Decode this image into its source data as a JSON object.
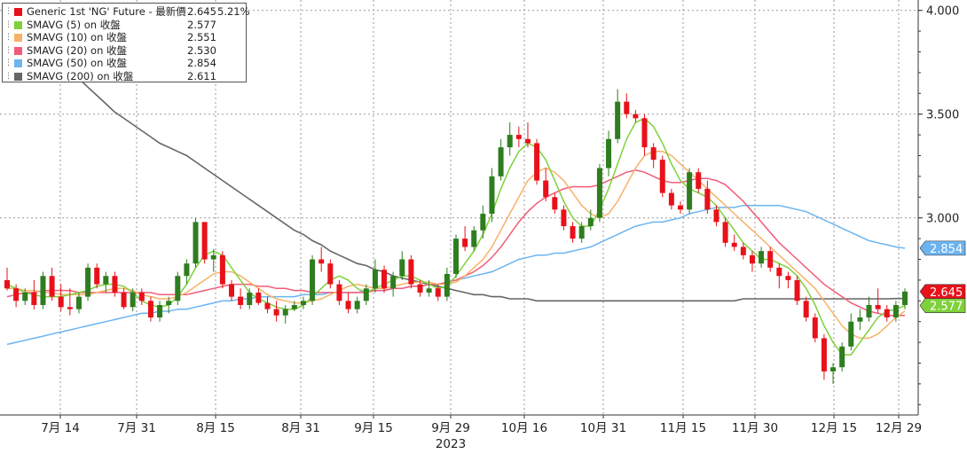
{
  "legend": [
    {
      "label": "Generic 1st 'NG' Future - 最新價",
      "value": "2.645",
      "change": "5.21%",
      "color": "#e8111a"
    },
    {
      "label": "SMAVG (5)  on 收盤",
      "value": "2.577",
      "change": "",
      "color": "#7fd13b"
    },
    {
      "label": "SMAVG (10)  on 收盤",
      "value": "2.551",
      "change": "",
      "color": "#f7b267"
    },
    {
      "label": "SMAVG (20)  on 收盤",
      "value": "2.530",
      "change": "",
      "color": "#f25c78"
    },
    {
      "label": "SMAVG (50)  on 收盤",
      "value": "2.854",
      "change": "",
      "color": "#6cb4f0"
    },
    {
      "label": "SMAVG (200)  on 收盤",
      "value": "2.611",
      "change": "",
      "color": "#666666"
    }
  ],
  "chart_data": {
    "type": "candlestick",
    "y_ticks": [
      "4.000",
      "3.500",
      "3.000"
    ],
    "y_tick_values": [
      4.0,
      3.5,
      3.0
    ],
    "ylim": [
      2.05,
      4.05
    ],
    "x_tick_labels": [
      "7月 14",
      "7月 31",
      "8月 15",
      "8月 31",
      "9月 15",
      "9月 29",
      "10月 16",
      "10月 31",
      "11月 15",
      "11月 30",
      "12月 15",
      "12月 29"
    ],
    "x_sublabel": "2023",
    "grid": true,
    "up_color": "#2e7d1f",
    "down_color": "#e8111a",
    "value_tags": [
      {
        "text": "2.854",
        "value": 2.854,
        "color": "#6cb4f0"
      },
      {
        "text": "2.645",
        "value": 2.645,
        "color": "#e8111a"
      },
      {
        "text": "2.577",
        "value": 2.577,
        "color": "#7fd13b"
      }
    ],
    "candles": [
      [
        2.7,
        2.76,
        2.65,
        2.66
      ],
      [
        2.66,
        2.68,
        2.57,
        2.6
      ],
      [
        2.6,
        2.66,
        2.58,
        2.64
      ],
      [
        2.64,
        2.7,
        2.56,
        2.58
      ],
      [
        2.58,
        2.74,
        2.56,
        2.72
      ],
      [
        2.72,
        2.76,
        2.6,
        2.62
      ],
      [
        2.62,
        2.68,
        2.55,
        2.57
      ],
      [
        2.57,
        2.66,
        2.53,
        2.56
      ],
      [
        2.56,
        2.64,
        2.54,
        2.62
      ],
      [
        2.62,
        2.78,
        2.6,
        2.76
      ],
      [
        2.76,
        2.78,
        2.66,
        2.68
      ],
      [
        2.68,
        2.74,
        2.64,
        2.72
      ],
      [
        2.72,
        2.74,
        2.62,
        2.64
      ],
      [
        2.64,
        2.66,
        2.56,
        2.57
      ],
      [
        2.57,
        2.66,
        2.55,
        2.64
      ],
      [
        2.64,
        2.66,
        2.58,
        2.6
      ],
      [
        2.6,
        2.62,
        2.5,
        2.52
      ],
      [
        2.52,
        2.6,
        2.5,
        2.58
      ],
      [
        2.58,
        2.62,
        2.54,
        2.6
      ],
      [
        2.6,
        2.74,
        2.58,
        2.72
      ],
      [
        2.72,
        2.8,
        2.68,
        2.78
      ],
      [
        2.78,
        3.0,
        2.76,
        2.98
      ],
      [
        2.98,
        2.98,
        2.78,
        2.8
      ],
      [
        2.8,
        2.85,
        2.74,
        2.82
      ],
      [
        2.82,
        2.84,
        2.66,
        2.68
      ],
      [
        2.68,
        2.7,
        2.6,
        2.62
      ],
      [
        2.62,
        2.66,
        2.56,
        2.58
      ],
      [
        2.58,
        2.66,
        2.56,
        2.64
      ],
      [
        2.64,
        2.66,
        2.58,
        2.59
      ],
      [
        2.59,
        2.62,
        2.54,
        2.56
      ],
      [
        2.56,
        2.6,
        2.5,
        2.53
      ],
      [
        2.53,
        2.58,
        2.49,
        2.56
      ],
      [
        2.56,
        2.6,
        2.55,
        2.58
      ],
      [
        2.58,
        2.62,
        2.56,
        2.6
      ],
      [
        2.6,
        2.82,
        2.58,
        2.8
      ],
      [
        2.8,
        2.86,
        2.74,
        2.78
      ],
      [
        2.78,
        2.8,
        2.66,
        2.68
      ],
      [
        2.68,
        2.7,
        2.58,
        2.6
      ],
      [
        2.6,
        2.64,
        2.54,
        2.56
      ],
      [
        2.56,
        2.62,
        2.54,
        2.6
      ],
      [
        2.6,
        2.68,
        2.58,
        2.66
      ],
      [
        2.66,
        2.8,
        2.64,
        2.75
      ],
      [
        2.75,
        2.77,
        2.64,
        2.66
      ],
      [
        2.66,
        2.74,
        2.62,
        2.72
      ],
      [
        2.72,
        2.84,
        2.7,
        2.8
      ],
      [
        2.8,
        2.82,
        2.66,
        2.68
      ],
      [
        2.68,
        2.7,
        2.62,
        2.64
      ],
      [
        2.64,
        2.7,
        2.62,
        2.66
      ],
      [
        2.66,
        2.68,
        2.6,
        2.62
      ],
      [
        2.62,
        2.76,
        2.6,
        2.73
      ],
      [
        2.73,
        2.92,
        2.71,
        2.9
      ],
      [
        2.9,
        2.96,
        2.84,
        2.86
      ],
      [
        2.86,
        2.96,
        2.84,
        2.94
      ],
      [
        2.94,
        3.06,
        2.9,
        3.02
      ],
      [
        3.02,
        3.24,
        2.98,
        3.2
      ],
      [
        3.2,
        3.38,
        3.18,
        3.34
      ],
      [
        3.34,
        3.46,
        3.3,
        3.4
      ],
      [
        3.4,
        3.44,
        3.34,
        3.38
      ],
      [
        3.38,
        3.46,
        3.34,
        3.36
      ],
      [
        3.36,
        3.38,
        3.16,
        3.18
      ],
      [
        3.18,
        3.24,
        3.08,
        3.1
      ],
      [
        3.1,
        3.12,
        3.02,
        3.04
      ],
      [
        3.04,
        3.06,
        2.94,
        2.96
      ],
      [
        2.96,
        2.98,
        2.88,
        2.9
      ],
      [
        2.9,
        2.98,
        2.88,
        2.96
      ],
      [
        2.96,
        3.04,
        2.94,
        3.0
      ],
      [
        3.0,
        3.26,
        2.98,
        3.24
      ],
      [
        3.24,
        3.42,
        3.2,
        3.38
      ],
      [
        3.38,
        3.62,
        3.36,
        3.56
      ],
      [
        3.56,
        3.6,
        3.48,
        3.5
      ],
      [
        3.5,
        3.52,
        3.46,
        3.48
      ],
      [
        3.48,
        3.5,
        3.3,
        3.34
      ],
      [
        3.34,
        3.36,
        3.24,
        3.28
      ],
      [
        3.28,
        3.3,
        3.1,
        3.12
      ],
      [
        3.12,
        3.14,
        3.04,
        3.06
      ],
      [
        3.06,
        3.08,
        3.02,
        3.04
      ],
      [
        3.04,
        3.24,
        3.02,
        3.22
      ],
      [
        3.22,
        3.24,
        3.12,
        3.14
      ],
      [
        3.14,
        3.18,
        3.02,
        3.04
      ],
      [
        3.04,
        3.06,
        2.96,
        2.98
      ],
      [
        2.98,
        3.0,
        2.86,
        2.88
      ],
      [
        2.88,
        2.92,
        2.84,
        2.86
      ],
      [
        2.86,
        2.88,
        2.8,
        2.82
      ],
      [
        2.82,
        2.84,
        2.74,
        2.78
      ],
      [
        2.78,
        2.86,
        2.76,
        2.84
      ],
      [
        2.84,
        2.86,
        2.74,
        2.76
      ],
      [
        2.76,
        2.78,
        2.66,
        2.72
      ],
      [
        2.72,
        2.74,
        2.66,
        2.7
      ],
      [
        2.7,
        2.72,
        2.58,
        2.6
      ],
      [
        2.6,
        2.62,
        2.5,
        2.52
      ],
      [
        2.52,
        2.54,
        2.4,
        2.42
      ],
      [
        2.42,
        2.44,
        2.22,
        2.26
      ],
      [
        2.26,
        2.3,
        2.2,
        2.28
      ],
      [
        2.28,
        2.4,
        2.26,
        2.38
      ],
      [
        2.38,
        2.54,
        2.36,
        2.5
      ],
      [
        2.5,
        2.56,
        2.46,
        2.52
      ],
      [
        2.52,
        2.62,
        2.5,
        2.58
      ],
      [
        2.58,
        2.66,
        2.54,
        2.56
      ],
      [
        2.56,
        2.58,
        2.5,
        2.52
      ],
      [
        2.52,
        2.6,
        2.5,
        2.58
      ],
      [
        2.58,
        2.66,
        2.56,
        2.645
      ]
    ],
    "sma5": [
      2.68,
      2.66,
      2.64,
      2.63,
      2.62,
      2.62,
      2.62,
      2.63,
      2.64,
      2.65,
      2.67,
      2.68,
      2.68,
      2.67,
      2.64,
      2.6,
      2.58,
      2.57,
      2.58,
      2.62,
      2.68,
      2.76,
      2.82,
      2.84,
      2.82,
      2.76,
      2.7,
      2.64,
      2.61,
      2.59,
      2.57,
      2.56,
      2.56,
      2.58,
      2.62,
      2.66,
      2.7,
      2.72,
      2.7,
      2.66,
      2.64,
      2.66,
      2.68,
      2.7,
      2.72,
      2.72,
      2.7,
      2.68,
      2.66,
      2.67,
      2.72,
      2.78,
      2.84,
      2.92,
      3.02,
      3.14,
      3.24,
      3.32,
      3.36,
      3.34,
      3.28,
      3.18,
      3.08,
      3.0,
      2.96,
      2.96,
      3.04,
      3.14,
      3.26,
      3.38,
      3.46,
      3.48,
      3.44,
      3.36,
      3.26,
      3.18,
      3.14,
      3.12,
      3.1,
      3.06,
      3.0,
      2.94,
      2.88,
      2.84,
      2.8,
      2.8,
      2.78,
      2.76,
      2.72,
      2.66,
      2.58,
      2.48,
      2.4,
      2.34,
      2.34,
      2.4,
      2.46,
      2.52,
      2.55,
      2.56,
      2.577
    ],
    "sma10": [
      2.66,
      2.66,
      2.65,
      2.65,
      2.64,
      2.64,
      2.63,
      2.63,
      2.63,
      2.63,
      2.64,
      2.65,
      2.66,
      2.66,
      2.65,
      2.63,
      2.62,
      2.61,
      2.61,
      2.62,
      2.64,
      2.67,
      2.7,
      2.73,
      2.74,
      2.74,
      2.72,
      2.69,
      2.66,
      2.63,
      2.61,
      2.6,
      2.59,
      2.59,
      2.6,
      2.61,
      2.63,
      2.65,
      2.67,
      2.68,
      2.67,
      2.66,
      2.66,
      2.67,
      2.68,
      2.69,
      2.69,
      2.69,
      2.68,
      2.68,
      2.69,
      2.72,
      2.76,
      2.8,
      2.86,
      2.94,
      3.02,
      3.1,
      3.18,
      3.22,
      3.24,
      3.22,
      3.18,
      3.12,
      3.06,
      3.02,
      3.0,
      3.02,
      3.08,
      3.16,
      3.24,
      3.3,
      3.32,
      3.32,
      3.3,
      3.26,
      3.22,
      3.18,
      3.14,
      3.1,
      3.06,
      3.02,
      2.98,
      2.94,
      2.9,
      2.86,
      2.82,
      2.78,
      2.74,
      2.7,
      2.66,
      2.6,
      2.54,
      2.48,
      2.44,
      2.42,
      2.42,
      2.44,
      2.48,
      2.52,
      2.551
    ],
    "sma20": [
      2.62,
      2.63,
      2.64,
      2.64,
      2.65,
      2.65,
      2.65,
      2.65,
      2.64,
      2.64,
      2.64,
      2.64,
      2.64,
      2.64,
      2.64,
      2.64,
      2.64,
      2.63,
      2.63,
      2.63,
      2.63,
      2.64,
      2.65,
      2.66,
      2.67,
      2.68,
      2.68,
      2.68,
      2.67,
      2.67,
      2.66,
      2.66,
      2.65,
      2.65,
      2.64,
      2.64,
      2.64,
      2.64,
      2.64,
      2.64,
      2.64,
      2.65,
      2.65,
      2.66,
      2.66,
      2.67,
      2.67,
      2.68,
      2.68,
      2.69,
      2.7,
      2.72,
      2.74,
      2.77,
      2.81,
      2.86,
      2.92,
      2.98,
      3.03,
      3.07,
      3.1,
      3.12,
      3.14,
      3.15,
      3.15,
      3.15,
      3.16,
      3.18,
      3.2,
      3.22,
      3.23,
      3.22,
      3.2,
      3.18,
      3.17,
      3.17,
      3.18,
      3.19,
      3.19,
      3.18,
      3.16,
      3.12,
      3.08,
      3.03,
      2.98,
      2.93,
      2.88,
      2.84,
      2.8,
      2.76,
      2.72,
      2.68,
      2.65,
      2.62,
      2.59,
      2.57,
      2.55,
      2.54,
      2.53,
      2.53,
      2.53
    ],
    "sma50": [
      2.39,
      2.4,
      2.41,
      2.42,
      2.43,
      2.44,
      2.45,
      2.46,
      2.47,
      2.48,
      2.49,
      2.5,
      2.51,
      2.52,
      2.53,
      2.54,
      2.54,
      2.55,
      2.55,
      2.56,
      2.56,
      2.57,
      2.58,
      2.59,
      2.6,
      2.6,
      2.61,
      2.61,
      2.62,
      2.62,
      2.62,
      2.62,
      2.62,
      2.63,
      2.63,
      2.63,
      2.64,
      2.64,
      2.64,
      2.64,
      2.65,
      2.65,
      2.65,
      2.66,
      2.66,
      2.67,
      2.67,
      2.68,
      2.68,
      2.69,
      2.7,
      2.71,
      2.72,
      2.73,
      2.74,
      2.76,
      2.78,
      2.8,
      2.81,
      2.82,
      2.82,
      2.83,
      2.83,
      2.84,
      2.85,
      2.86,
      2.88,
      2.9,
      2.92,
      2.94,
      2.96,
      2.97,
      2.98,
      2.98,
      2.99,
      3.0,
      3.02,
      3.03,
      3.04,
      3.05,
      3.05,
      3.05,
      3.06,
      3.06,
      3.06,
      3.06,
      3.06,
      3.05,
      3.04,
      3.03,
      3.01,
      2.99,
      2.97,
      2.95,
      2.93,
      2.91,
      2.89,
      2.88,
      2.87,
      2.86,
      2.854
    ],
    "sma200": [
      3.99,
      3.95,
      3.91,
      3.87,
      3.83,
      3.79,
      3.75,
      3.71,
      3.67,
      3.63,
      3.59,
      3.55,
      3.51,
      3.48,
      3.45,
      3.42,
      3.39,
      3.36,
      3.34,
      3.32,
      3.3,
      3.27,
      3.24,
      3.21,
      3.18,
      3.15,
      3.12,
      3.09,
      3.06,
      3.03,
      3.0,
      2.97,
      2.94,
      2.92,
      2.89,
      2.87,
      2.84,
      2.82,
      2.8,
      2.78,
      2.77,
      2.75,
      2.74,
      2.72,
      2.71,
      2.7,
      2.69,
      2.68,
      2.67,
      2.66,
      2.65,
      2.64,
      2.63,
      2.63,
      2.62,
      2.62,
      2.61,
      2.61,
      2.61,
      2.6,
      2.6,
      2.6,
      2.6,
      2.6,
      2.6,
      2.6,
      2.6,
      2.6,
      2.6,
      2.6,
      2.6,
      2.6,
      2.6,
      2.6,
      2.6,
      2.6,
      2.6,
      2.6,
      2.6,
      2.6,
      2.6,
      2.6,
      2.61,
      2.61,
      2.61,
      2.61,
      2.61,
      2.61,
      2.61,
      2.61,
      2.61,
      2.61,
      2.61,
      2.61,
      2.61,
      2.61,
      2.61,
      2.61,
      2.61,
      2.611,
      2.611
    ]
  }
}
